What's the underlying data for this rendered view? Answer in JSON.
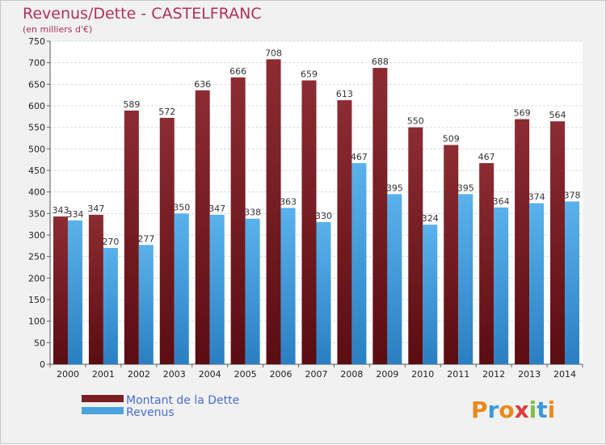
{
  "chart_data": {
    "type": "bar",
    "title": "Revenus/Dette - CASTELFRANC",
    "subtitle": "(en milliers d'€)",
    "categories": [
      "2000",
      "2001",
      "2002",
      "2003",
      "2004",
      "2005",
      "2006",
      "2007",
      "2008",
      "2009",
      "2010",
      "2011",
      "2012",
      "2013",
      "2014"
    ],
    "series": [
      {
        "name": "Montant de la Dette",
        "color": "#7a1f24",
        "values": [
          343,
          347,
          589,
          572,
          636,
          666,
          708,
          659,
          613,
          688,
          550,
          509,
          467,
          569,
          564
        ]
      },
      {
        "name": "Revenus",
        "color": "#4aa3e0",
        "values": [
          334,
          270,
          277,
          350,
          347,
          338,
          363,
          330,
          467,
          395,
          324,
          395,
          364,
          374,
          378
        ]
      }
    ],
    "ylim": [
      0,
      750
    ],
    "yticks": [
      0,
      50,
      100,
      150,
      200,
      250,
      300,
      350,
      400,
      450,
      500,
      550,
      600,
      650,
      700,
      750
    ],
    "grid": true,
    "legend_position": "bottom-left"
  },
  "brand": {
    "letters": [
      "P",
      "r",
      "o",
      "x",
      "i",
      "t",
      "i"
    ],
    "colors": [
      "#e88a1a",
      "#3a9ad9",
      "#e88a1a",
      "#e03a3a",
      "#7cc142",
      "#3a9ad9",
      "#e88a1a"
    ]
  }
}
